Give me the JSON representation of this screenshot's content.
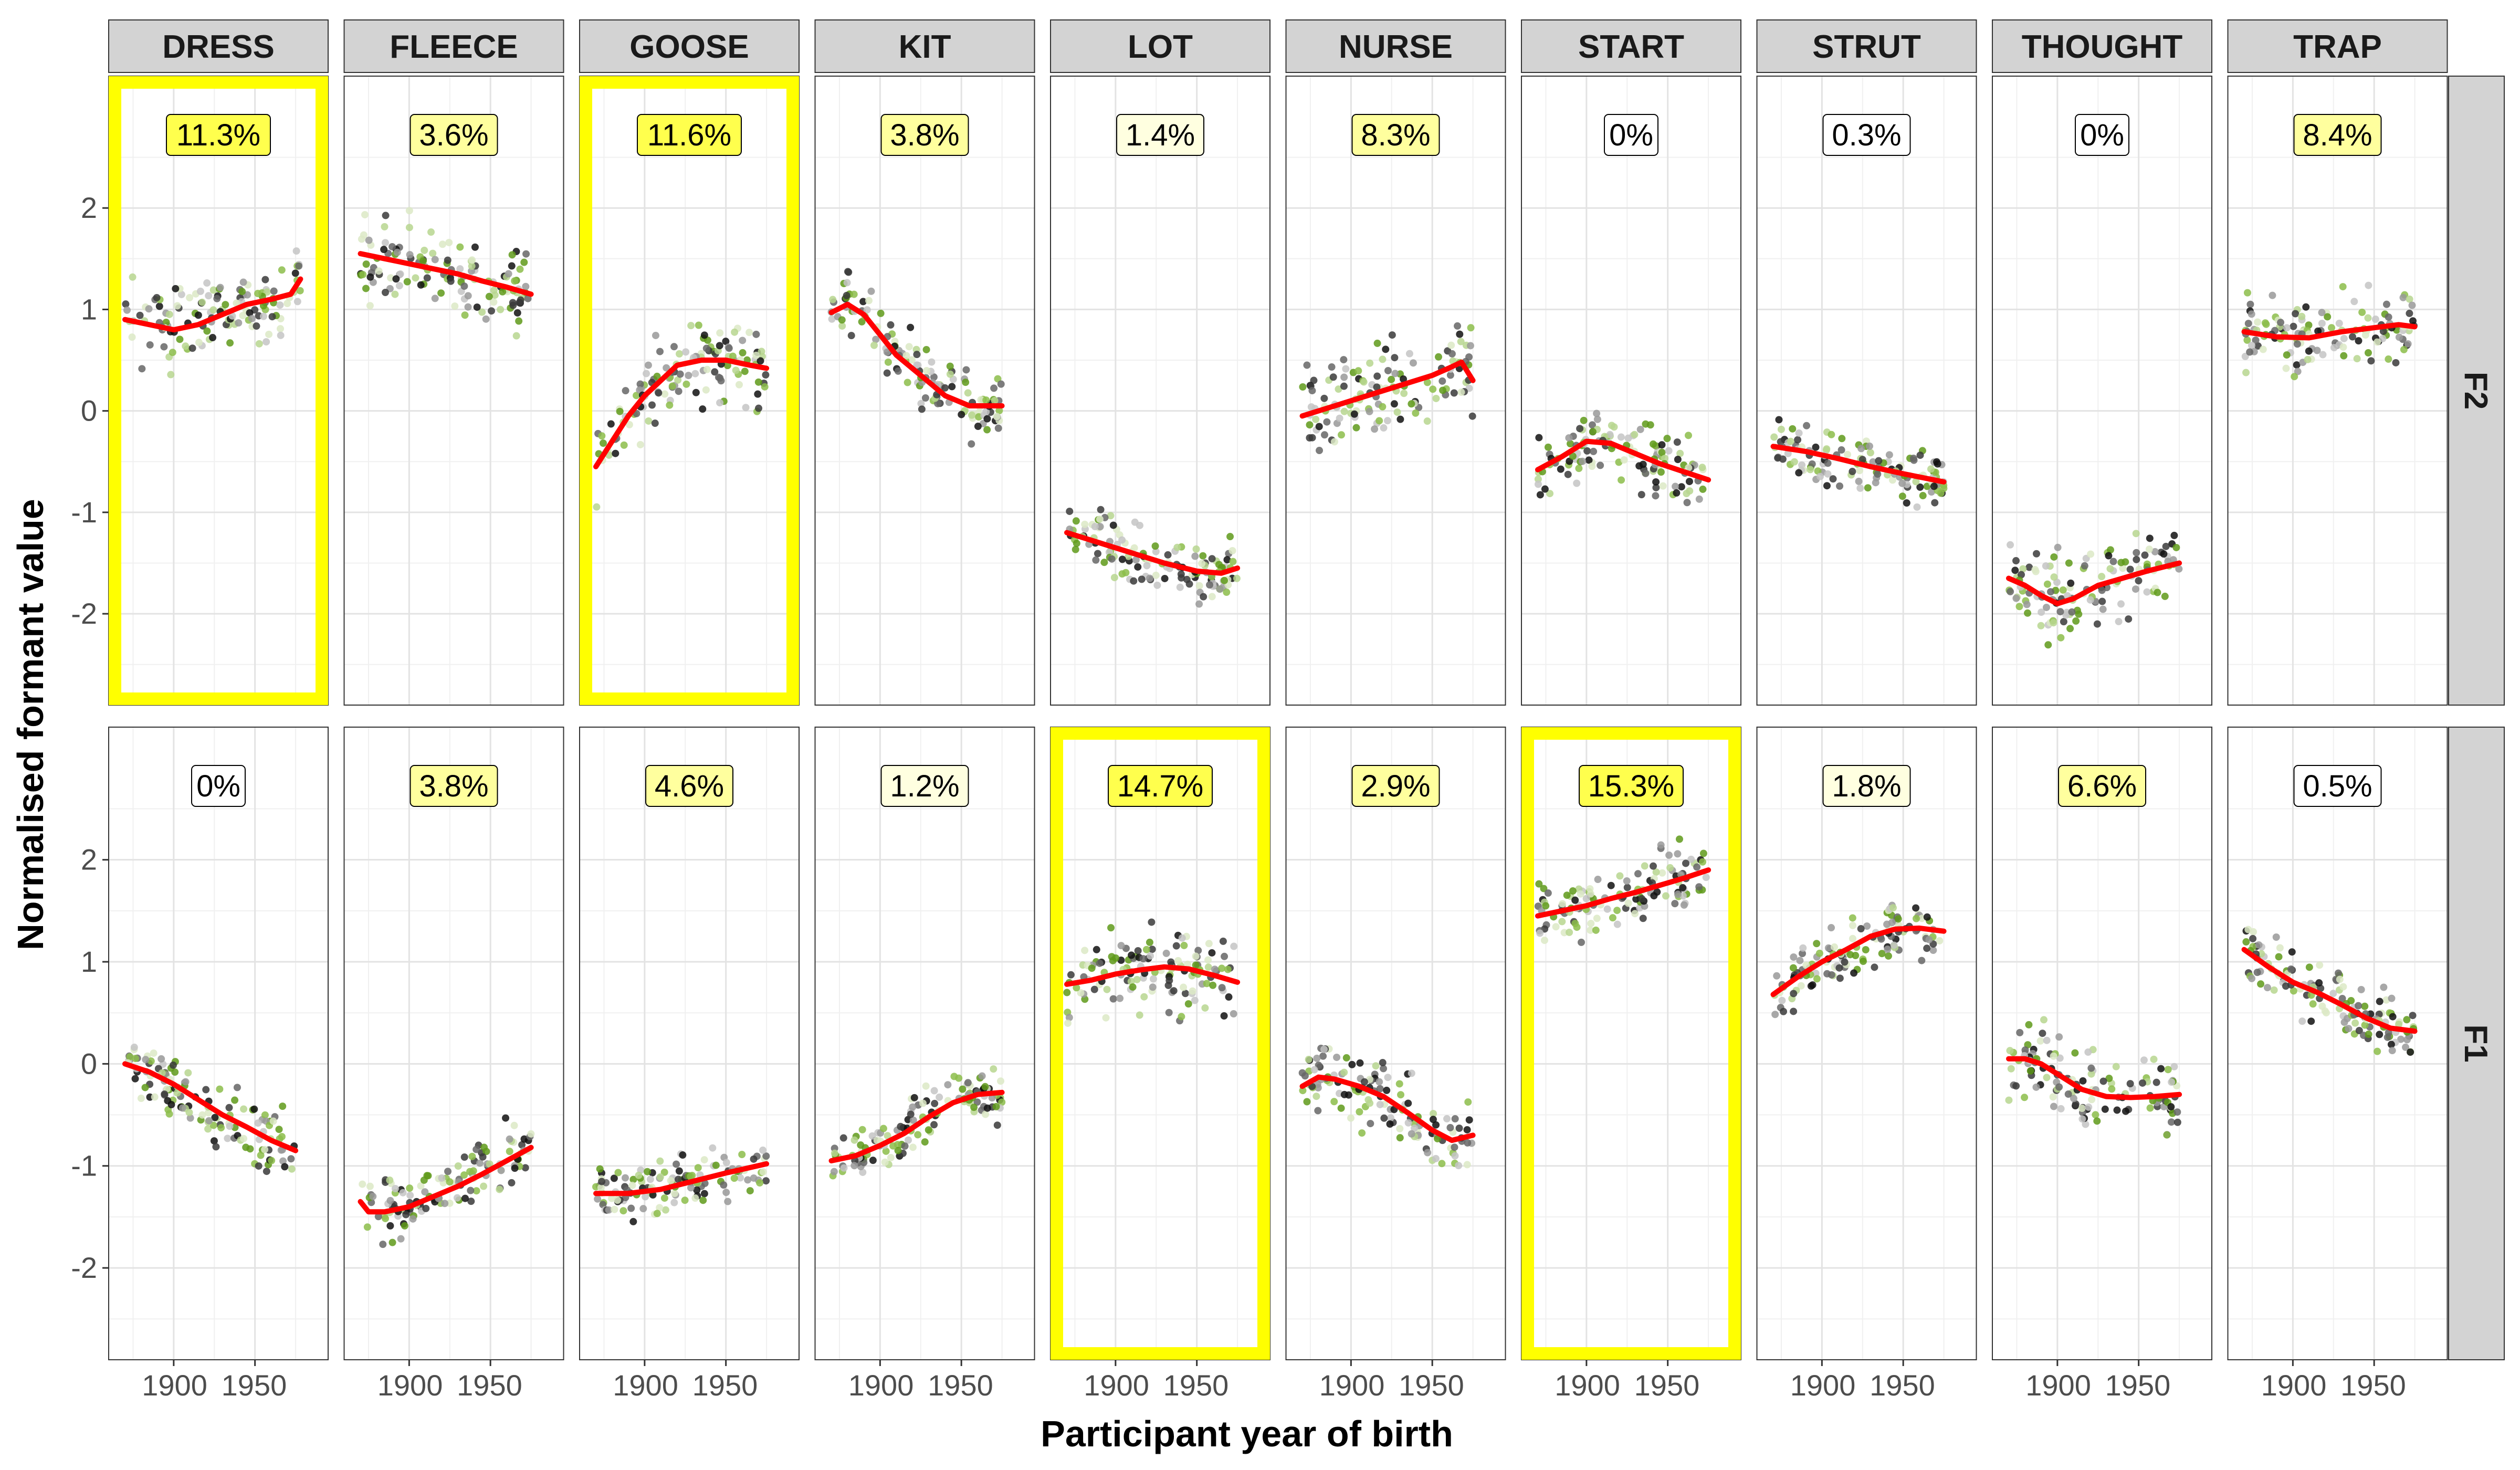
{
  "chart_data": {
    "type": "scatter",
    "xlabel": "Participant year of birth",
    "ylabel": "Normalised formant value",
    "xlim": [
      1860,
      1995
    ],
    "ylim": [
      -2.9,
      3.3
    ],
    "x_ticks": [
      1900,
      1950
    ],
    "y_ticks": [
      -2,
      -1,
      0,
      1,
      2
    ],
    "grid": true,
    "colors": {
      "smooth_line": "#ff0000",
      "highlight_border": "#ffff00",
      "strip_fill": "#d3d3d3",
      "point_greens": [
        "#5f9a1a",
        "#8cbd4a",
        "#b7d68f",
        "#dce9c5"
      ],
      "point_greys": [
        "#111111",
        "#3a3a3a",
        "#666666",
        "#999999",
        "#c4c4c4"
      ]
    },
    "vowels": [
      "DRESS",
      "FLEECE",
      "GOOSE",
      "KIT",
      "LOT",
      "NURSE",
      "START",
      "STRUT",
      "THOUGHT",
      "TRAP"
    ],
    "formants": [
      "F2",
      "F1"
    ],
    "panels": [
      {
        "vowel": "DRESS",
        "formant": "F2",
        "percent": "11.3%",
        "highlight": true,
        "spread": 0.2,
        "x": [
          1870,
          1885,
          1900,
          1915,
          1930,
          1945,
          1960,
          1972,
          1978
        ],
        "y": [
          0.9,
          0.85,
          0.8,
          0.85,
          0.95,
          1.05,
          1.1,
          1.15,
          1.3
        ]
      },
      {
        "vowel": "FLEECE",
        "formant": "F2",
        "percent": "3.6%",
        "highlight": false,
        "spread": 0.2,
        "x": [
          1870,
          1885,
          1900,
          1915,
          1930,
          1945,
          1960,
          1975
        ],
        "y": [
          1.55,
          1.5,
          1.45,
          1.4,
          1.35,
          1.28,
          1.22,
          1.15
        ]
      },
      {
        "vowel": "GOOSE",
        "formant": "F2",
        "percent": "11.6%",
        "highlight": true,
        "spread": 0.2,
        "x": [
          1870,
          1880,
          1890,
          1900,
          1910,
          1920,
          1935,
          1950,
          1965,
          1975
        ],
        "y": [
          -0.55,
          -0.3,
          -0.05,
          0.15,
          0.3,
          0.45,
          0.5,
          0.5,
          0.45,
          0.42
        ]
      },
      {
        "vowel": "KIT",
        "formant": "F2",
        "percent": "3.8%",
        "highlight": false,
        "spread": 0.15,
        "x": [
          1870,
          1880,
          1890,
          1900,
          1910,
          1925,
          1940,
          1955,
          1970,
          1975
        ],
        "y": [
          0.97,
          1.05,
          0.95,
          0.75,
          0.55,
          0.35,
          0.15,
          0.05,
          0.05,
          0.05
        ]
      },
      {
        "vowel": "LOT",
        "formant": "F2",
        "percent": "1.4%",
        "highlight": false,
        "spread": 0.15,
        "x": [
          1870,
          1890,
          1910,
          1930,
          1950,
          1965,
          1975
        ],
        "y": [
          -1.2,
          -1.3,
          -1.4,
          -1.5,
          -1.58,
          -1.6,
          -1.55
        ]
      },
      {
        "vowel": "NURSE",
        "formant": "F2",
        "percent": "8.3%",
        "highlight": true,
        "spread": 0.2,
        "x": [
          1870,
          1890,
          1910,
          1930,
          1950,
          1960,
          1968,
          1975
        ],
        "y": [
          -0.05,
          0.05,
          0.15,
          0.25,
          0.35,
          0.42,
          0.48,
          0.3
        ]
      },
      {
        "vowel": "START",
        "formant": "F2",
        "percent": "0%",
        "highlight": false,
        "spread": 0.15,
        "x": [
          1870,
          1885,
          1900,
          1915,
          1930,
          1945,
          1960,
          1975
        ],
        "y": [
          -0.58,
          -0.45,
          -0.3,
          -0.32,
          -0.42,
          -0.52,
          -0.6,
          -0.68
        ]
      },
      {
        "vowel": "STRUT",
        "formant": "F2",
        "percent": "0.3%",
        "highlight": false,
        "spread": 0.15,
        "x": [
          1870,
          1890,
          1910,
          1930,
          1950,
          1975
        ],
        "y": [
          -0.35,
          -0.4,
          -0.47,
          -0.55,
          -0.62,
          -0.7
        ]
      },
      {
        "vowel": "THOUGHT",
        "formant": "F2",
        "percent": "0%",
        "highlight": false,
        "spread": 0.2,
        "x": [
          1870,
          1880,
          1890,
          1900,
          1910,
          1925,
          1940,
          1955,
          1970,
          1975
        ],
        "y": [
          -1.65,
          -1.72,
          -1.82,
          -1.9,
          -1.85,
          -1.72,
          -1.65,
          -1.58,
          -1.52,
          -1.5
        ]
      },
      {
        "vowel": "TRAP",
        "formant": "F2",
        "percent": "8.4%",
        "highlight": true,
        "spread": 0.18,
        "x": [
          1870,
          1890,
          1910,
          1930,
          1950,
          1965,
          1975
        ],
        "y": [
          0.78,
          0.73,
          0.72,
          0.78,
          0.82,
          0.85,
          0.83
        ]
      },
      {
        "vowel": "DRESS",
        "formant": "F1",
        "percent": "0%",
        "highlight": false,
        "spread": 0.15,
        "x": [
          1870,
          1885,
          1900,
          1915,
          1930,
          1945,
          1960,
          1975
        ],
        "y": [
          0.0,
          -0.08,
          -0.2,
          -0.35,
          -0.5,
          -0.62,
          -0.75,
          -0.85
        ]
      },
      {
        "vowel": "FLEECE",
        "formant": "F1",
        "percent": "3.8%",
        "highlight": true,
        "spread": 0.15,
        "x": [
          1870,
          1875,
          1885,
          1900,
          1915,
          1930,
          1945,
          1960,
          1975
        ],
        "y": [
          -1.35,
          -1.45,
          -1.45,
          -1.4,
          -1.3,
          -1.2,
          -1.08,
          -0.95,
          -0.82
        ]
      },
      {
        "vowel": "GOOSE",
        "formant": "F1",
        "percent": "4.6%",
        "highlight": true,
        "spread": 0.12,
        "x": [
          1870,
          1890,
          1910,
          1930,
          1950,
          1975
        ],
        "y": [
          -1.27,
          -1.27,
          -1.23,
          -1.15,
          -1.07,
          -0.98
        ]
      },
      {
        "vowel": "KIT",
        "formant": "F1",
        "percent": "1.2%",
        "highlight": false,
        "spread": 0.15,
        "x": [
          1870,
          1885,
          1900,
          1915,
          1930,
          1945,
          1960,
          1975
        ],
        "y": [
          -0.95,
          -0.9,
          -0.8,
          -0.68,
          -0.52,
          -0.38,
          -0.3,
          -0.28
        ]
      },
      {
        "vowel": "LOT",
        "formant": "F1",
        "percent": "14.7%",
        "highlight": true,
        "spread": 0.2,
        "x": [
          1870,
          1885,
          1900,
          1915,
          1930,
          1945,
          1960,
          1975
        ],
        "y": [
          0.78,
          0.82,
          0.88,
          0.92,
          0.95,
          0.93,
          0.87,
          0.8
        ]
      },
      {
        "vowel": "NURSE",
        "formant": "F1",
        "percent": "2.9%",
        "highlight": false,
        "spread": 0.18,
        "x": [
          1870,
          1880,
          1890,
          1905,
          1920,
          1935,
          1950,
          1962,
          1975
        ],
        "y": [
          -0.22,
          -0.13,
          -0.15,
          -0.22,
          -0.32,
          -0.48,
          -0.65,
          -0.75,
          -0.7
        ]
      },
      {
        "vowel": "START",
        "formant": "F1",
        "percent": "15.3%",
        "highlight": true,
        "spread": 0.15,
        "x": [
          1870,
          1885,
          1900,
          1915,
          1930,
          1945,
          1960,
          1975
        ],
        "y": [
          1.45,
          1.5,
          1.55,
          1.62,
          1.68,
          1.75,
          1.82,
          1.9
        ]
      },
      {
        "vowel": "STRUT",
        "formant": "F1",
        "percent": "1.8%",
        "highlight": false,
        "spread": 0.15,
        "x": [
          1870,
          1885,
          1900,
          1915,
          1930,
          1945,
          1960,
          1975
        ],
        "y": [
          0.68,
          0.85,
          1.0,
          1.12,
          1.25,
          1.32,
          1.33,
          1.3
        ]
      },
      {
        "vowel": "THOUGHT",
        "formant": "F1",
        "percent": "6.6%",
        "highlight": true,
        "spread": 0.2,
        "x": [
          1870,
          1880,
          1890,
          1900,
          1915,
          1930,
          1945,
          1960,
          1975
        ],
        "y": [
          0.05,
          0.05,
          0.0,
          -0.1,
          -0.25,
          -0.32,
          -0.33,
          -0.32,
          -0.3
        ]
      },
      {
        "vowel": "TRAP",
        "formant": "F1",
        "percent": "0.5%",
        "highlight": false,
        "spread": 0.15,
        "x": [
          1870,
          1885,
          1900,
          1915,
          1930,
          1945,
          1960,
          1975
        ],
        "y": [
          1.12,
          0.95,
          0.8,
          0.7,
          0.58,
          0.45,
          0.35,
          0.32
        ]
      }
    ]
  }
}
